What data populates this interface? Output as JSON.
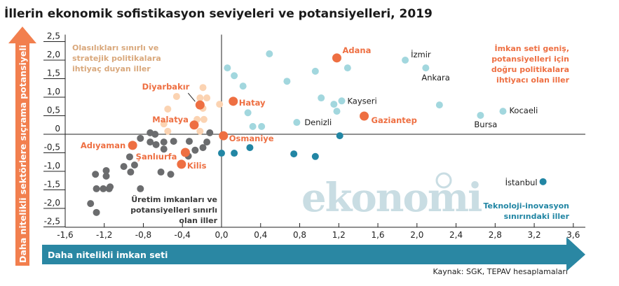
{
  "chart_data": {
    "type": "scatter",
    "title": "İllerin ekonomik sofistikasyon seviyeleri ve potansiyelleri, 2019",
    "xlabel": "Daha nitelikli imkan seti",
    "ylabel": "Daha nitelikli sektörlere sıçrama potansiyeli",
    "xlim": [
      -1.6,
      3.6
    ],
    "ylim": [
      -2.5,
      2.5
    ],
    "xticks": [
      "-1,6",
      "-1,2",
      "-0,8",
      "-0,4",
      "0,0",
      "0,4",
      "0,8",
      "1,2",
      "1,6",
      "2,0",
      "2,4",
      "2,8",
      "3,2",
      "3,6"
    ],
    "yticks": [
      "2,5",
      "2,0",
      "1,5",
      "1,0",
      "0,5",
      "0",
      "-0,5",
      "-1,0",
      "-1,5",
      "-2,0",
      "-2,5"
    ],
    "grid": false,
    "source": "Kaynak: SGK, TEPAV hesaplamaları",
    "watermark": "ekonomi",
    "quadrants": {
      "top_left": [
        "Olasılıkları sınırlı ve",
        "stratejik politikalara",
        "ihtiyaç duyan iller"
      ],
      "top_right": [
        "İmkan seti geniş,",
        "potansiyelleri için",
        "doğru politikalara",
        "ihtiyacı olan iller"
      ],
      "bottom_left": [
        "Üretim imkanları ve",
        "potansiyelleri sınırlı",
        "olan iller"
      ],
      "bottom_right": [
        "Teknoloji-inovasyon",
        "sınırındaki iller"
      ]
    },
    "colors": {
      "highlight": "#ee6f42",
      "top_left": "#fbd3b2",
      "bottom_left": "#6b6c6e",
      "top_right": "#a2d7de",
      "bottom_right": "#2286a4",
      "top_left_text": "#d9a87c",
      "arrow_y": "#f27f4e",
      "arrow_x": "#2a87a3"
    },
    "series": [
      {
        "group": "highlight",
        "points": [
          {
            "x": 1.18,
            "y": 2.06,
            "label": "Adana"
          },
          {
            "x": 0.12,
            "y": 0.89,
            "label": "Hatay"
          },
          {
            "x": 1.46,
            "y": 0.49,
            "label": "Gaziantep"
          },
          {
            "x": 0.02,
            "y": -0.04,
            "label": "Osmaniye"
          },
          {
            "x": -0.22,
            "y": 0.79,
            "label": "Diyarbakır"
          },
          {
            "x": -0.28,
            "y": 0.25,
            "label": "Malatya"
          },
          {
            "x": -0.91,
            "y": -0.3,
            "label": "Adıyaman"
          },
          {
            "x": -0.37,
            "y": -0.49,
            "label": "Şanlıurfa"
          },
          {
            "x": -0.41,
            "y": -0.81,
            "label": "Kilis"
          }
        ]
      },
      {
        "group": "top_left",
        "points": [
          {
            "x": -0.19,
            "y": 1.26
          },
          {
            "x": -0.46,
            "y": 1.02
          },
          {
            "x": -0.22,
            "y": 0.98
          },
          {
            "x": -0.15,
            "y": 0.98
          },
          {
            "x": -0.55,
            "y": 0.68
          },
          {
            "x": -0.19,
            "y": 0.7
          },
          {
            "x": -0.25,
            "y": 0.4
          },
          {
            "x": -0.18,
            "y": 0.4
          },
          {
            "x": -0.59,
            "y": 0.28
          },
          {
            "x": -0.55,
            "y": 0.08
          },
          {
            "x": -0.22,
            "y": 0.08
          },
          {
            "x": -0.02,
            "y": 0.81
          }
        ]
      },
      {
        "group": "bottom_left",
        "points": [
          {
            "x": -0.73,
            "y": 0.04
          },
          {
            "x": -0.68,
            "y": 0.0
          },
          {
            "x": -0.83,
            "y": -0.11
          },
          {
            "x": -0.12,
            "y": 0.04
          },
          {
            "x": -0.73,
            "y": -0.21
          },
          {
            "x": -0.67,
            "y": -0.28
          },
          {
            "x": -0.59,
            "y": -0.21
          },
          {
            "x": -0.59,
            "y": -0.4
          },
          {
            "x": -0.49,
            "y": -0.19
          },
          {
            "x": -0.33,
            "y": -0.19
          },
          {
            "x": -0.15,
            "y": -0.21
          },
          {
            "x": -0.19,
            "y": -0.36
          },
          {
            "x": -0.27,
            "y": -0.43
          },
          {
            "x": -0.34,
            "y": -0.59
          },
          {
            "x": -0.94,
            "y": -0.61
          },
          {
            "x": -1.0,
            "y": -0.87
          },
          {
            "x": -0.89,
            "y": -0.83
          },
          {
            "x": -0.93,
            "y": -1.02
          },
          {
            "x": -0.62,
            "y": -1.02
          },
          {
            "x": -0.52,
            "y": -1.08
          },
          {
            "x": -1.29,
            "y": -1.08
          },
          {
            "x": -1.18,
            "y": -0.98
          },
          {
            "x": -1.18,
            "y": -1.13
          },
          {
            "x": -1.28,
            "y": -1.47
          },
          {
            "x": -1.21,
            "y": -1.47
          },
          {
            "x": -1.15,
            "y": -1.47
          },
          {
            "x": -1.14,
            "y": -1.42
          },
          {
            "x": -0.83,
            "y": -1.47
          },
          {
            "x": -1.34,
            "y": -1.87
          },
          {
            "x": -1.28,
            "y": -2.11
          }
        ]
      },
      {
        "group": "top_right",
        "points": [
          {
            "x": 0.49,
            "y": 2.17
          },
          {
            "x": 0.06,
            "y": 1.79
          },
          {
            "x": 0.13,
            "y": 1.58
          },
          {
            "x": 0.22,
            "y": 1.3
          },
          {
            "x": 0.67,
            "y": 1.43
          },
          {
            "x": 0.96,
            "y": 1.7
          },
          {
            "x": 1.29,
            "y": 1.79
          },
          {
            "x": 1.88,
            "y": 2.0,
            "label": "İzmir"
          },
          {
            "x": 2.09,
            "y": 1.79,
            "label": "Ankara"
          },
          {
            "x": 1.02,
            "y": 0.98
          },
          {
            "x": 1.15,
            "y": 0.81
          },
          {
            "x": 1.23,
            "y": 0.9,
            "label": "Kayseri"
          },
          {
            "x": 1.18,
            "y": 0.62
          },
          {
            "x": 0.27,
            "y": 0.58
          },
          {
            "x": 0.32,
            "y": 0.21
          },
          {
            "x": 0.41,
            "y": 0.21
          },
          {
            "x": 0.77,
            "y": 0.32,
            "label": "Denizli"
          },
          {
            "x": 2.23,
            "y": 0.79
          },
          {
            "x": 2.65,
            "y": 0.51,
            "label": "Bursa"
          },
          {
            "x": 2.88,
            "y": 0.62,
            "label": "Kocaeli"
          }
        ]
      },
      {
        "group": "bottom_right",
        "points": [
          {
            "x": 1.21,
            "y": -0.04
          },
          {
            "x": 0.29,
            "y": -0.36
          },
          {
            "x": 0.0,
            "y": -0.51
          },
          {
            "x": 0.13,
            "y": -0.51
          },
          {
            "x": 0.74,
            "y": -0.53
          },
          {
            "x": 0.96,
            "y": -0.6
          },
          {
            "x": 3.29,
            "y": -1.28,
            "label": "İstanbul"
          }
        ]
      }
    ]
  }
}
